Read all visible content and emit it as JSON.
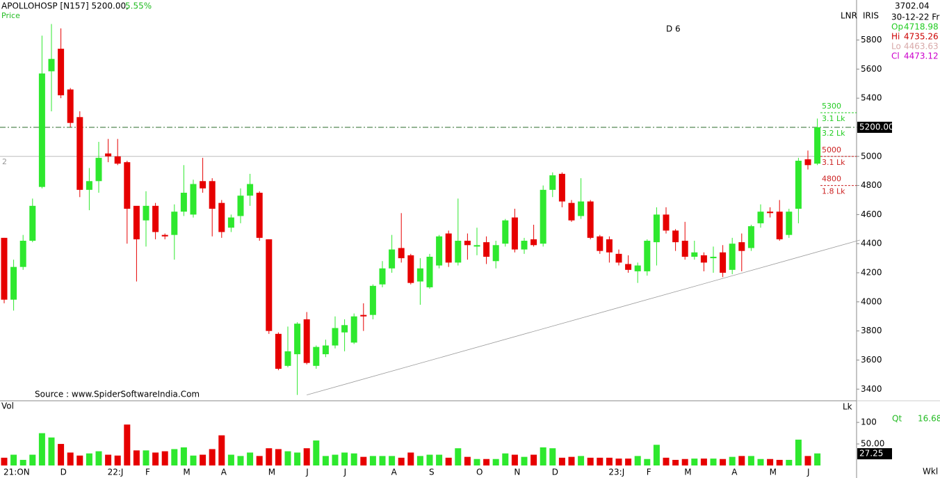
{
  "chart_data": {
    "type": "candlestick",
    "title": "APOLLOHOSP [N157] 5200.00,",
    "change": "5.55%",
    "pane_label": "Price",
    "marker": "D 6",
    "left_marker": "2",
    "source": "Source : www.SpiderSoftwareIndia.Com",
    "header_right": [
      "LNR",
      "IRIS"
    ],
    "info": {
      "value": "3702.04",
      "date": "30-12-22 Fri",
      "rows": [
        {
          "label": "Op",
          "value": "4718.98",
          "color": "#22cc22"
        },
        {
          "label": "Hi",
          "value": "4735.26",
          "color": "#cc0000"
        },
        {
          "label": "Lo",
          "value": "4463.63",
          "color": "#d8a8a8"
        },
        {
          "label": "Cl",
          "value": "4473.12",
          "color": "#cc00cc"
        }
      ]
    },
    "up_color": "#2ee82e",
    "down_color": "#e60000",
    "categories": [
      "21:ON",
      null,
      null,
      null,
      null,
      null,
      "D",
      null,
      null,
      null,
      null,
      "22:J",
      null,
      null,
      null,
      "F",
      null,
      null,
      null,
      "M",
      null,
      null,
      null,
      "A",
      null,
      null,
      null,
      null,
      "M",
      null,
      null,
      null,
      "J",
      null,
      null,
      null,
      "J",
      null,
      null,
      null,
      null,
      "A",
      null,
      null,
      null,
      "S",
      null,
      null,
      null,
      null,
      "O",
      null,
      null,
      null,
      "N",
      null,
      null,
      null,
      "D",
      null,
      null,
      null,
      null,
      null,
      "23:J",
      null,
      null,
      null,
      "F",
      null,
      null,
      null,
      "M",
      null,
      null,
      null,
      null,
      "A",
      null,
      null,
      null,
      "M",
      null,
      null,
      null,
      "J",
      null
    ],
    "ohlc": [
      [
        4440,
        4440,
        3990,
        4015
      ],
      [
        4015,
        4290,
        3940,
        4240
      ],
      [
        4240,
        4460,
        4220,
        4420
      ],
      [
        4420,
        4710,
        4410,
        4660
      ],
      [
        4790,
        5830,
        4780,
        5570
      ],
      [
        5585,
        5910,
        5310,
        5670
      ],
      [
        5740,
        5880,
        5400,
        5420
      ],
      [
        5460,
        5470,
        5200,
        5230
      ],
      [
        5270,
        5310,
        4720,
        4770
      ],
      [
        4770,
        4920,
        4630,
        4830
      ],
      [
        4830,
        5100,
        4750,
        4990
      ],
      [
        5020,
        5120,
        4960,
        5000
      ],
      [
        5000,
        5120,
        4940,
        4950
      ],
      [
        4960,
        4970,
        4400,
        4640
      ],
      [
        4660,
        4650,
        4140,
        4430
      ],
      [
        4560,
        4760,
        4380,
        4660
      ],
      [
        4660,
        4680,
        4430,
        4480
      ],
      [
        4460,
        4470,
        4430,
        4450
      ],
      [
        4460,
        4670,
        4290,
        4620
      ],
      [
        4620,
        4940,
        4590,
        4750
      ],
      [
        4600,
        4840,
        4580,
        4810
      ],
      [
        4830,
        4990,
        4750,
        4780
      ],
      [
        4830,
        4850,
        4450,
        4640
      ],
      [
        4680,
        4700,
        4440,
        4480
      ],
      [
        4510,
        4600,
        4480,
        4580
      ],
      [
        4590,
        4780,
        4540,
        4730
      ],
      [
        4730,
        4880,
        4660,
        4810
      ],
      [
        4750,
        4760,
        4420,
        4440
      ],
      [
        4430,
        4430,
        3780,
        3800
      ],
      [
        3780,
        3790,
        3530,
        3540
      ],
      [
        3560,
        3830,
        3550,
        3660
      ],
      [
        3640,
        3860,
        3360,
        3850
      ],
      [
        3880,
        3930,
        3570,
        3580
      ],
      [
        3560,
        3700,
        3540,
        3690
      ],
      [
        3640,
        3740,
        3620,
        3700
      ],
      [
        3700,
        3900,
        3680,
        3820
      ],
      [
        3790,
        3880,
        3660,
        3840
      ],
      [
        3720,
        3920,
        3710,
        3900
      ],
      [
        3910,
        3990,
        3800,
        3900
      ],
      [
        3910,
        4120,
        3880,
        4110
      ],
      [
        4120,
        4280,
        4100,
        4230
      ],
      [
        4230,
        4460,
        4200,
        4360
      ],
      [
        4370,
        4610,
        4270,
        4300
      ],
      [
        4320,
        4330,
        4120,
        4130
      ],
      [
        4140,
        4300,
        3980,
        4230
      ],
      [
        4100,
        4330,
        4090,
        4310
      ],
      [
        4250,
        4460,
        4230,
        4450
      ],
      [
        4470,
        4490,
        4240,
        4270
      ],
      [
        4270,
        4710,
        4250,
        4420
      ],
      [
        4420,
        4470,
        4290,
        4390
      ],
      [
        4380,
        4510,
        4320,
        4390
      ],
      [
        4410,
        4450,
        4260,
        4310
      ],
      [
        4280,
        4420,
        4230,
        4390
      ],
      [
        4400,
        4570,
        4380,
        4560
      ],
      [
        4580,
        4640,
        4340,
        4360
      ],
      [
        4360,
        4440,
        4330,
        4420
      ],
      [
        4430,
        4530,
        4380,
        4390
      ],
      [
        4400,
        4800,
        4380,
        4770
      ],
      [
        4770,
        4890,
        4720,
        4870
      ],
      [
        4880,
        4890,
        4650,
        4690
      ],
      [
        4680,
        4700,
        4550,
        4560
      ],
      [
        4590,
        4850,
        4570,
        4690
      ],
      [
        4690,
        4700,
        4430,
        4440
      ],
      [
        4450,
        4460,
        4330,
        4350
      ],
      [
        4430,
        4450,
        4270,
        4340
      ],
      [
        4330,
        4360,
        4250,
        4270
      ],
      [
        4260,
        4320,
        4200,
        4220
      ],
      [
        4210,
        4270,
        4130,
        4250
      ],
      [
        4210,
        4430,
        4180,
        4420
      ],
      [
        4410,
        4650,
        4250,
        4600
      ],
      [
        4600,
        4650,
        4470,
        4490
      ],
      [
        4490,
        4500,
        4350,
        4410
      ],
      [
        4420,
        4550,
        4290,
        4310
      ],
      [
        4310,
        4420,
        4290,
        4340
      ],
      [
        4320,
        4340,
        4210,
        4270
      ],
      [
        4300,
        4380,
        4200,
        4310
      ],
      [
        4340,
        4390,
        4170,
        4200
      ],
      [
        4220,
        4440,
        4190,
        4400
      ],
      [
        4410,
        4470,
        4210,
        4350
      ],
      [
        4370,
        4530,
        4350,
        4520
      ],
      [
        4540,
        4670,
        4510,
        4620
      ],
      [
        4620,
        4650,
        4580,
        4610
      ],
      [
        4620,
        4700,
        4420,
        4430
      ],
      [
        4460,
        4640,
        4440,
        4620
      ],
      [
        4640,
        4990,
        4540,
        4970
      ],
      [
        4980,
        5040,
        4910,
        4940
      ],
      [
        4950,
        5260,
        4940,
        5200
      ]
    ],
    "ylim": [
      3320,
      6075
    ],
    "yticks": [
      3400,
      3600,
      3800,
      4000,
      4200,
      4400,
      4600,
      4800,
      5000,
      5200,
      5400,
      5600,
      5800
    ],
    "last_price": {
      "value": 5200,
      "label": "5200.00"
    },
    "reference_line": 5000,
    "levels": [
      {
        "value": 5300,
        "volume": "3.1 Lk",
        "side": "up"
      },
      {
        "value": 5000,
        "volume": "3.1 Lk",
        "side": "down"
      },
      {
        "value": 4800,
        "volume": "1.8 Lk",
        "side": "down"
      }
    ],
    "last_volume_label": "3.2 Lk",
    "trendline": {
      "start_index": 32,
      "start": 3360,
      "end_index": 90.5,
      "end": 4425
    },
    "volume_label": "Vol",
    "volume_unit": "Lk",
    "volume": [
      18,
      25,
      13,
      25,
      75,
      65,
      50,
      30,
      23,
      28,
      33,
      25,
      23,
      95,
      35,
      35,
      30,
      33,
      38,
      42,
      23,
      25,
      38,
      70,
      25,
      22,
      30,
      22,
      40,
      38,
      33,
      30,
      40,
      58,
      22,
      25,
      30,
      28,
      20,
      22,
      22,
      22,
      18,
      30,
      22,
      25,
      25,
      18,
      40,
      20,
      15,
      15,
      15,
      28,
      25,
      20,
      25,
      42,
      40,
      18,
      20,
      22,
      18,
      18,
      18,
      16,
      16,
      22,
      15,
      48,
      18,
      13,
      15,
      16,
      16,
      16,
      15,
      20,
      22,
      22,
      15,
      15,
      13,
      13,
      60,
      22,
      28
    ],
    "volume_ylim": [
      0,
      147
    ],
    "volume_yticks": [
      {
        "value": 50,
        "label": "50.00"
      },
      100
    ],
    "last_volume": {
      "value": 27.25,
      "label": "27.25"
    },
    "qt": {
      "label": "Qt",
      "value": "16.68"
    },
    "period": "Wkl"
  }
}
